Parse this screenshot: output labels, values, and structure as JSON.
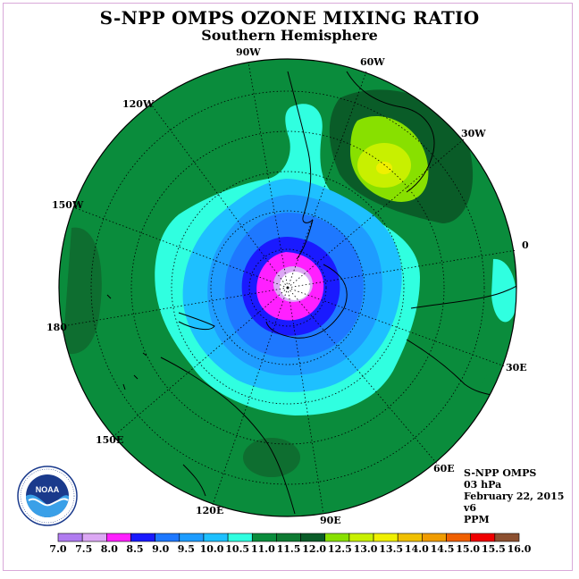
{
  "title": "S-NPP OMPS OZONE MIXING RATIO",
  "subtitle": "Southern Hemisphere",
  "map": {
    "projection": "polar stereographic",
    "meridian_labels": [
      "90W",
      "60W",
      "30W",
      "0",
      "30E",
      "60E",
      "90E",
      "120E",
      "150E",
      "180",
      "150W",
      "120W"
    ]
  },
  "info": {
    "instrument": "S-NPP OMPS",
    "level": "03 hPa",
    "date": "February 22, 2015",
    "version": "v6",
    "units": "PPM"
  },
  "colorbar": {
    "labels": [
      "7.0",
      "7.5",
      "8.0",
      "8.5",
      "9.0",
      "9.5",
      "10.0",
      "10.5",
      "11.0",
      "11.5",
      "12.0",
      "12.5",
      "13.0",
      "13.5",
      "14.0",
      "14.5",
      "15.0",
      "15.5",
      "16.0"
    ],
    "colors": [
      "#b07cf0",
      "#dca8f4",
      "#ff20ff",
      "#1a1aff",
      "#1e78ff",
      "#1e9cff",
      "#1ec0ff",
      "#30ffe0",
      "#0a8c3c",
      "#0e7a32",
      "#0a5c28",
      "#88e000",
      "#c8f000",
      "#f0f000",
      "#f0c000",
      "#f09c00",
      "#f06000",
      "#f00000",
      "#8c5030"
    ]
  },
  "logo": {
    "text": "NOAA",
    "icon": "noaa-logo-icon"
  }
}
